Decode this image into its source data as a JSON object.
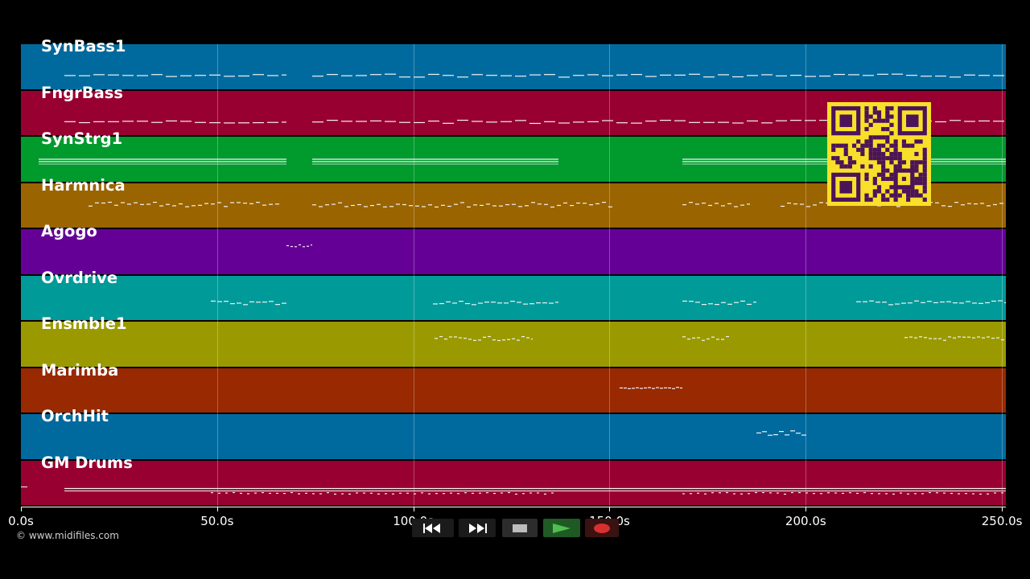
{
  "tracks": [
    {
      "name": "SynBass1",
      "color": "#006a9e"
    },
    {
      "name": "FngrBass",
      "color": "#980031"
    },
    {
      "name": "SynStrg1",
      "color": "#009a2d"
    },
    {
      "name": "Harmnica",
      "color": "#9a6400"
    },
    {
      "name": "Agogo",
      "color": "#650097"
    },
    {
      "name": "Ovrdrive",
      "color": "#009a99"
    },
    {
      "name": "Ensmble1",
      "color": "#9a9a00"
    },
    {
      "name": "Marimba",
      "color": "#982900"
    },
    {
      "name": "OrchHit",
      "color": "#006a9e"
    },
    {
      "name": "GM Drums",
      "color": "#980031"
    }
  ],
  "timeline": {
    "ticks": [
      "0.0s",
      "50.0s",
      "100.0s",
      "150.0s",
      "200.0s",
      "250.0s"
    ],
    "tick_values": [
      0,
      50,
      100,
      150,
      200,
      250
    ],
    "max_seconds": 251
  },
  "copyright": "© www.midifiles.com",
  "transport": {
    "buttons": [
      {
        "name": "rewind-button",
        "icon": "rewind-icon"
      },
      {
        "name": "fast-forward-button",
        "icon": "fast-forward-icon"
      },
      {
        "name": "stop-button",
        "icon": "stop-icon"
      },
      {
        "name": "play-button",
        "icon": "play-icon"
      },
      {
        "name": "record-button",
        "icon": "record-icon"
      }
    ]
  },
  "overlay": {
    "icon": "qr-code-icon",
    "color": "#f8e02a"
  }
}
